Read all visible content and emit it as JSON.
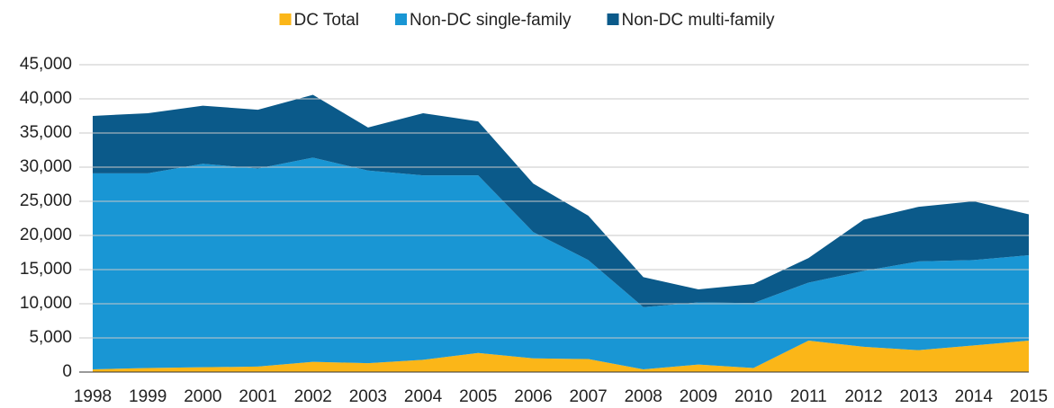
{
  "chart_data": {
    "type": "stacked_area",
    "x": [
      1998,
      1999,
      2000,
      2001,
      2002,
      2003,
      2004,
      2005,
      2006,
      2007,
      2008,
      2009,
      2010,
      2011,
      2012,
      2013,
      2014,
      2015
    ],
    "xlim": [
      1998,
      2015
    ],
    "xticks": [
      1998,
      1999,
      2000,
      2001,
      2002,
      2003,
      2004,
      2005,
      2006,
      2007,
      2008,
      2009,
      2010,
      2011,
      2012,
      2013,
      2014,
      2015
    ],
    "series": [
      {
        "name": "DC Total",
        "color": "#fbb618",
        "values": [
          400,
          600,
          700,
          800,
          1500,
          1300,
          1800,
          2800,
          2000,
          1900,
          400,
          1100,
          600,
          4600,
          3700,
          3200,
          3900,
          4600
        ]
      },
      {
        "name": "Non-DC single-family",
        "color": "#1996d4",
        "values": [
          28700,
          28500,
          29800,
          29000,
          29900,
          28200,
          27000,
          26000,
          18500,
          14500,
          9100,
          9100,
          9500,
          8500,
          11100,
          13000,
          12500,
          12500
        ]
      },
      {
        "name": "Non-DC multi-family",
        "color": "#0b5a8a",
        "values": [
          8400,
          8800,
          8500,
          8600,
          9200,
          6300,
          9100,
          7900,
          7100,
          6500,
          4400,
          1900,
          2800,
          3600,
          7500,
          8000,
          8600,
          6000
        ]
      }
    ],
    "ylim": [
      0,
      45000
    ],
    "yticks": [
      0,
      {
        "value": 5000,
        "label": "5,000"
      },
      {
        "value": 10000,
        "label": "10,000"
      },
      {
        "value": 15000,
        "label": "15,000"
      },
      {
        "value": 20000,
        "label": "20,000"
      },
      {
        "value": 25000,
        "label": "25,000"
      },
      {
        "value": 30000,
        "label": "30,000"
      },
      {
        "value": 35000,
        "label": "35,000"
      },
      {
        "value": 40000,
        "label": "40,000"
      },
      {
        "value": 45000,
        "label": "45,000"
      }
    ],
    "grid": true,
    "legend": "top"
  }
}
